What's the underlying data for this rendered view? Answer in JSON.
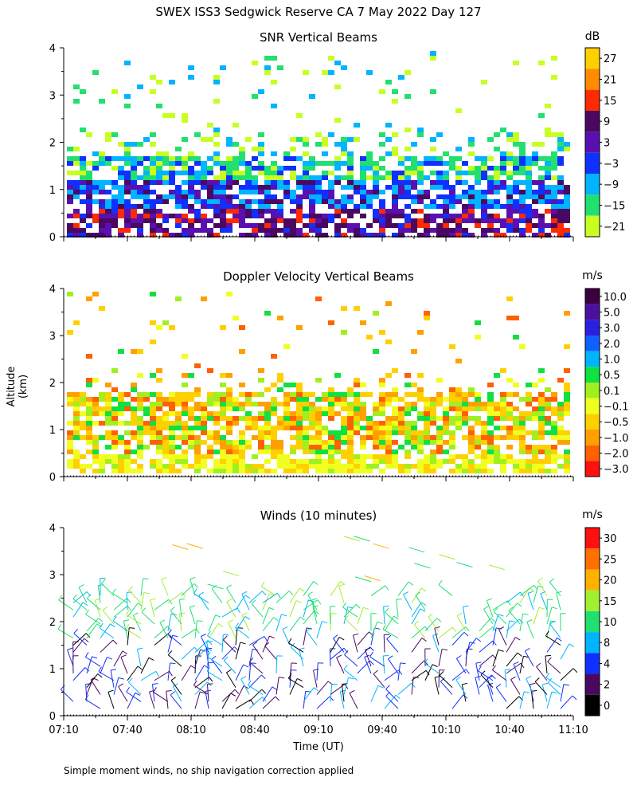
{
  "title": "SWEX ISS3 Sedgwick Reserve CA   7 May 2022 Day 127",
  "ylabel": "Altitude (km)",
  "xlabel": "Time (UT)",
  "footnote": "Simple moment winds, no ship navigation correction applied",
  "x_ticks": [
    "07:10",
    "07:40",
    "08:10",
    "08:40",
    "09:10",
    "09:40",
    "10:10",
    "10:40",
    "11:10"
  ],
  "chart_data": [
    {
      "type": "heatmap",
      "title": "SNR Vertical Beams",
      "unit": "dB",
      "ylim": [
        0,
        4
      ],
      "yticks": [
        "0",
        "1",
        "2",
        "3",
        "4"
      ],
      "colorbar": {
        "labels": [
          "27",
          "21",
          "15",
          "9",
          "3",
          "−3",
          "−9",
          "−15",
          "−21"
        ],
        "colors": [
          "#ffd000",
          "#ff8c00",
          "#ff2a00",
          "#4a0860",
          "#5a10b0",
          "#1030ff",
          "#00b4ff",
          "#22e070",
          "#c8ff20"
        ]
      }
    },
    {
      "type": "heatmap",
      "title": "Doppler Velocity Vertical Beams",
      "unit": "m/s",
      "ylim": [
        0,
        4
      ],
      "yticks": [
        "0",
        "1",
        "2",
        "3",
        "4"
      ],
      "colorbar": {
        "labels": [
          "10.0",
          "5.0",
          "3.0",
          "2.0",
          "1.0",
          "0.5",
          "0.1",
          "−0.1",
          "−0.5",
          "−1.0",
          "−2.0",
          "−3.0"
        ],
        "colors": [
          "#3a0040",
          "#4b10a0",
          "#2a20e0",
          "#1060ff",
          "#00b4ff",
          "#10e040",
          "#a0f020",
          "#f0ff20",
          "#ffd000",
          "#ffa000",
          "#ff6000",
          "#ff1010"
        ]
      }
    },
    {
      "type": "wind_barbs",
      "title": "Winds (10 minutes)",
      "unit": "m/s",
      "ylim": [
        0,
        4
      ],
      "yticks": [
        "0",
        "1",
        "2",
        "3",
        "4"
      ],
      "colorbar": {
        "labels": [
          "30",
          "25",
          "20",
          "15",
          "10",
          "8",
          "4",
          "2",
          "0"
        ],
        "colors": [
          "#ff1010",
          "#ff7000",
          "#ffb000",
          "#a0f030",
          "#20e070",
          "#00b4ff",
          "#1030ff",
          "#4a0860",
          "#000000"
        ]
      }
    }
  ]
}
